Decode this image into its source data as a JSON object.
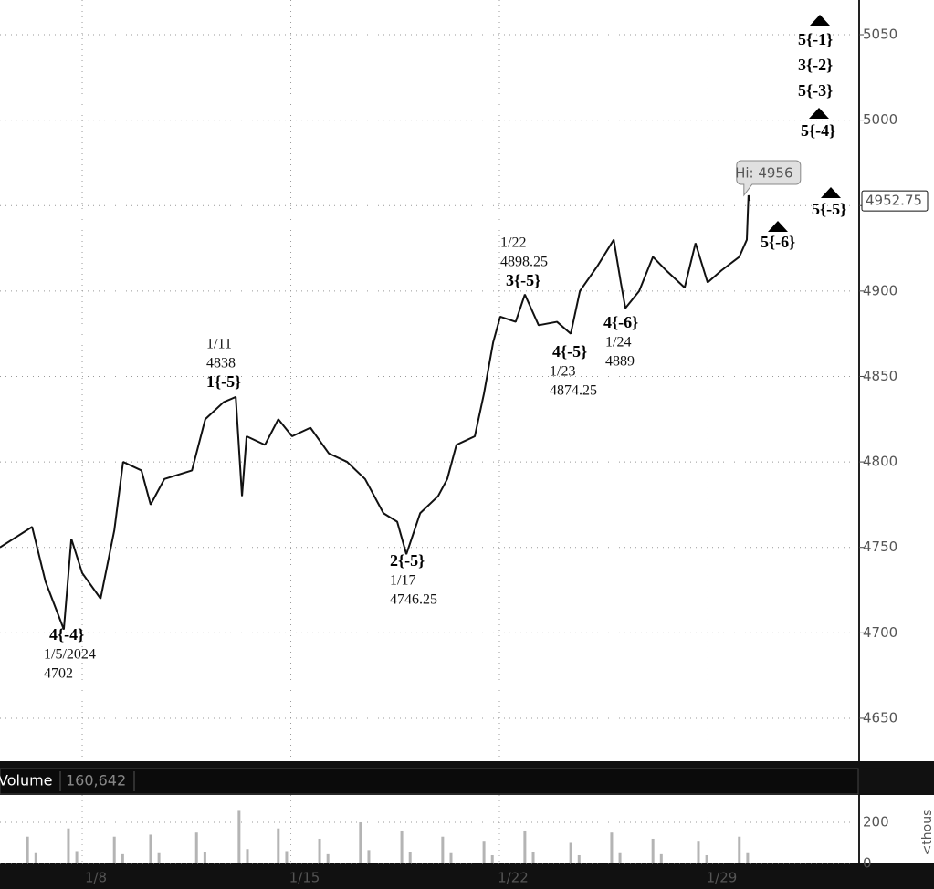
{
  "chart_data": [
    {
      "type": "line",
      "color": "#111111",
      "grid": true,
      "x": [
        -1.97,
        -1.2,
        -0.88,
        -0.44,
        -0.26,
        0,
        0.44,
        0.77,
        0.98,
        1.42,
        1.64,
        1.97,
        2.63,
        2.95,
        3.39,
        3.68,
        3.83,
        3.94,
        4.38,
        4.7,
        5.03,
        5.47,
        5.91,
        6.35,
        6.78,
        7.22,
        7.55,
        7.77,
        8.1,
        8.53,
        8.75,
        8.97,
        9.41,
        9.63,
        9.85,
        10.02,
        10.39,
        10.61,
        10.94,
        11.38,
        11.71,
        11.93,
        12.36,
        12.74,
        12.91,
        13.02,
        13.35,
        13.68,
        14.0,
        14.44,
        14.7,
        14.99,
        15.32,
        15.75,
        15.93,
        15.97,
        16.0
      ],
      "values": [
        4750,
        4762,
        4730,
        4702,
        4755,
        4735,
        4720,
        4760,
        4800,
        4795,
        4775,
        4790,
        4795,
        4825,
        4835,
        4838,
        4780,
        4815,
        4810,
        4825,
        4815,
        4820,
        4805,
        4800,
        4790,
        4770,
        4765,
        4746,
        4770,
        4780,
        4790,
        4810,
        4815,
        4840,
        4870,
        4885,
        4882,
        4898,
        4880,
        4882,
        4875,
        4900,
        4915,
        4930,
        4905,
        4890,
        4900,
        4920,
        4912,
        4902,
        4928,
        4905,
        4912,
        4920,
        4930,
        4956,
        4952.75
      ],
      "xlim": [
        -1.97,
        18.6
      ],
      "ylim": [
        4625.4,
        5070.3
      ],
      "xticks": [
        {
          "value": 0,
          "label": "1/8"
        },
        {
          "value": 5,
          "label": "1/15"
        },
        {
          "value": 10,
          "label": "1/22"
        },
        {
          "value": 15,
          "label": "1/29"
        }
      ],
      "yticks": [
        4650,
        4700,
        4750,
        4800,
        4850,
        4900,
        4950,
        5000,
        5050
      ],
      "last_price": 4952.75,
      "high_label": "Hi: 4956",
      "wave_labels": [
        {
          "lines": [
            "4{-4}",
            "1/5/2024",
            "4702"
          ]
        },
        {
          "lines": [
            "1/11",
            "4838",
            "1{-5}"
          ]
        },
        {
          "lines": [
            "2{-5}",
            "1/17",
            "4746.25"
          ]
        },
        {
          "lines": [
            "1/22",
            "4898.25",
            "3{-5}"
          ]
        },
        {
          "lines": [
            "4{-5}",
            "1/23",
            "4874.25"
          ]
        },
        {
          "lines": [
            "4{-6}",
            "1/24",
            "4889"
          ]
        }
      ],
      "targets": [
        {
          "lines": [
            "5{-1}",
            "3{-2}",
            "5{-3}"
          ]
        },
        {
          "lines": [
            "5{-4}"
          ]
        },
        {
          "lines": [
            "5{-5}"
          ]
        },
        {
          "lines": [
            "5{-6}"
          ]
        }
      ]
    },
    {
      "type": "bar",
      "title": "Volume",
      "current_volume": "160,642",
      "color": "#b4b4b4",
      "y_label": "<thous",
      "x": [
        -1.31,
        -1.11,
        -0.33,
        -0.13,
        0.77,
        0.97,
        1.64,
        1.84,
        2.74,
        2.94,
        3.76,
        3.96,
        4.7,
        4.9,
        5.69,
        5.89,
        6.67,
        6.87,
        7.66,
        7.86,
        8.64,
        8.84,
        9.63,
        9.83,
        10.61,
        10.81,
        11.71,
        11.91,
        12.69,
        12.89,
        13.68,
        13.88,
        14.77,
        14.97,
        15.75,
        15.95
      ],
      "values": [
        130,
        50,
        170,
        60,
        130,
        45,
        140,
        50,
        150,
        55,
        260,
        70,
        170,
        60,
        120,
        45,
        200,
        65,
        160,
        55,
        130,
        50,
        110,
        40,
        160,
        55,
        100,
        40,
        150,
        50,
        120,
        45,
        110,
        40,
        130,
        50
      ],
      "xlim": [
        -1.97,
        18.6
      ],
      "ylim": [
        0,
        333
      ],
      "yticks": [
        0,
        200
      ]
    }
  ]
}
